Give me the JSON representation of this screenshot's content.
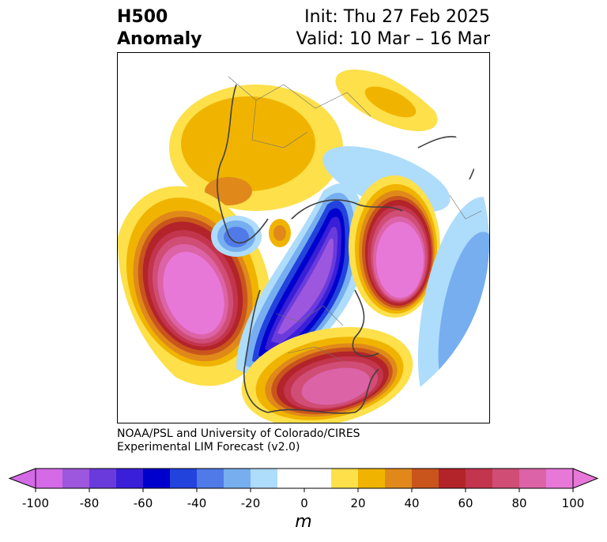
{
  "title": {
    "left_line1": "H500",
    "left_line2": "Anomaly",
    "right_line1": "Init: Thu 27 Feb 2025",
    "right_line2": "Valid: 10 Mar – 16 Mar"
  },
  "credit": {
    "line1": "NOAA/PSL and University of Colorado/CIRES",
    "line2": "Experimental LIM Forecast (v2.0)"
  },
  "colorbar": {
    "unit": "m",
    "ticks": [
      "-100",
      "-80",
      "-60",
      "-40",
      "-20",
      "0",
      "20",
      "40",
      "60",
      "80",
      "100"
    ],
    "colors": [
      "#d46ae6",
      "#9d56de",
      "#6a3bdc",
      "#3a1fd8",
      "#0000cc",
      "#2343dd",
      "#4f7ae8",
      "#76aef0",
      "#aedcfb",
      "#ffffff",
      "#ffffff",
      "#fde04a",
      "#f0b400",
      "#e0891a",
      "#c9551c",
      "#b3242a",
      "#c3354d",
      "#d04d76",
      "#dd63a7",
      "#e878d8"
    ]
  },
  "map": {
    "projection": "north-polar-stereographic",
    "field": "500 hPa geopotential height anomaly",
    "features": [
      {
        "kind": "positive",
        "peak": 100,
        "region": "North Pacific (Gulf of Alaska)"
      },
      {
        "kind": "positive",
        "peak": 100,
        "region": "North Atlantic / Northwest Europe"
      },
      {
        "kind": "positive",
        "peak": 80,
        "region": "Eastern North America / US East Coast"
      },
      {
        "kind": "positive",
        "peak": 40,
        "region": "Siberia / East Asia"
      },
      {
        "kind": "negative",
        "peak": -80,
        "region": "Western North America / Canada"
      },
      {
        "kind": "negative",
        "peak": -40,
        "region": "Western Pacific near Japan"
      },
      {
        "kind": "negative",
        "peak": -40,
        "region": "Central Atlantic"
      }
    ]
  }
}
